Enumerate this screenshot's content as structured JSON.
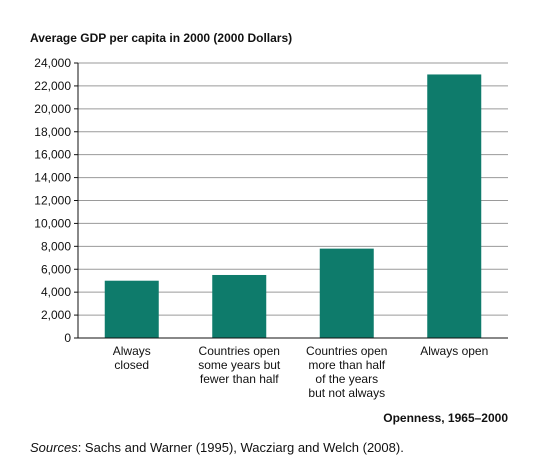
{
  "chart_data": {
    "type": "bar",
    "ylabel": "Average GDP per capita in 2000 (2000 Dollars)",
    "xlabel": "Openness, 1965–2000",
    "categories": [
      [
        "Always",
        "closed"
      ],
      [
        "Countries open",
        "some years but",
        "fewer than half"
      ],
      [
        "Countries open",
        "more than half",
        "of the years",
        "but not always"
      ],
      [
        "Always open"
      ]
    ],
    "values": [
      5000,
      5500,
      7800,
      23000
    ],
    "ylim": [
      0,
      24000
    ],
    "yticks": [
      0,
      2000,
      4000,
      6000,
      8000,
      10000,
      12000,
      14000,
      16000,
      18000,
      20000,
      22000,
      24000
    ],
    "ytick_labels": [
      "0",
      "2,000",
      "4,000",
      "6,000",
      "8,000",
      "10,000",
      "12,000",
      "14,000",
      "16,000",
      "18,000",
      "20,000",
      "22,000",
      "24,000"
    ],
    "grid": true,
    "bar_color": "#0e7b6b",
    "grid_color": "#9a9a9a"
  },
  "source": {
    "prefix": "Sources",
    "text": ": Sachs and Warner (1995), Wacziarg and Welch (2008)."
  }
}
